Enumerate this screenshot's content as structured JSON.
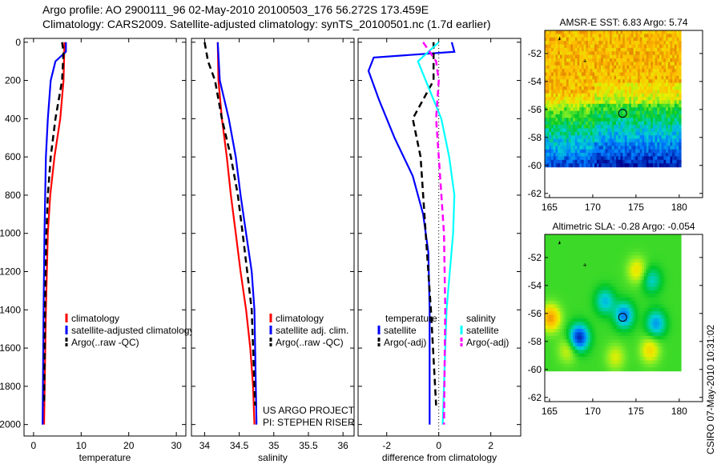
{
  "header": {
    "line1": "Argo profile: AO 2900111_96 02-May-2010 20100503_176 56.272S 173.459E",
    "line2": "Climatology: CARS2009. Satellite-adjusted climatology: synTS_20100501.nc (1.7d earlier)"
  },
  "side_stamp": "CSIRO 07-May-2010 10:31:02",
  "colors": {
    "red": "#ff0000",
    "blue": "#0000ff",
    "black": "#000000",
    "cyan": "#00ffff",
    "magenta": "#ff00ff"
  },
  "chart_data": [
    {
      "type": "line",
      "id": "temperature",
      "xlabel": "temperature",
      "xlim": [
        -2,
        32
      ],
      "ylim": [
        2060,
        -20
      ],
      "xticks": [
        0,
        10,
        20,
        30
      ],
      "yticks": [
        0,
        200,
        400,
        600,
        800,
        1000,
        1200,
        1400,
        1600,
        1800,
        2000
      ],
      "legend": [
        "climatology",
        "satellite-adjusted climatology",
        "Argo(..raw -QC)"
      ],
      "series": [
        {
          "name": "climatology",
          "color": "red",
          "dash": false,
          "depth": [
            0,
            100,
            200,
            400,
            600,
            800,
            1000,
            1400,
            2000
          ],
          "x": [
            6.5,
            6.4,
            6.3,
            5.6,
            4.4,
            3.5,
            3.0,
            2.6,
            2.2
          ]
        },
        {
          "name": "satellite-adjusted climatology",
          "color": "blue",
          "dash": false,
          "depth": [
            0,
            50,
            100,
            200,
            400,
            600,
            1000,
            1400,
            2000
          ],
          "x": [
            6.8,
            6.8,
            4.6,
            3.6,
            3.0,
            2.6,
            2.3,
            2.1,
            1.9
          ]
        },
        {
          "name": "Argo(..raw -QC)",
          "color": "black",
          "dash": true,
          "depth": [
            0,
            50,
            200,
            400,
            600,
            800,
            1000,
            1400,
            1900
          ],
          "x": [
            6.0,
            6.3,
            6.0,
            4.6,
            3.6,
            3.0,
            2.7,
            2.4,
            2.2
          ]
        }
      ]
    },
    {
      "type": "line",
      "id": "salinity",
      "xlabel": "salinity",
      "xlim": [
        33.81,
        36.16
      ],
      "ylim": [
        2060,
        -20
      ],
      "xticks": [
        34,
        34.5,
        35,
        35.5,
        36
      ],
      "legend": [
        "climatology",
        "satellite adj. clim.",
        "Argo(..raw -QC)"
      ],
      "annotation": [
        "US ARGO PROJECT",
        "PI: STEPHEN RISER"
      ],
      "series": [
        {
          "name": "climatology",
          "color": "red",
          "dash": false,
          "depth": [
            0,
            200,
            400,
            600,
            800,
            1000,
            1200,
            1400,
            1600,
            1800,
            2000
          ],
          "x": [
            34.19,
            34.2,
            34.25,
            34.32,
            34.38,
            34.45,
            34.52,
            34.6,
            34.66,
            34.7,
            34.72
          ]
        },
        {
          "name": "satellite adj. clim.",
          "color": "blue",
          "dash": false,
          "depth": [
            0,
            200,
            400,
            600,
            800,
            1000,
            1200,
            1400,
            2000
          ],
          "x": [
            34.19,
            34.22,
            34.35,
            34.45,
            34.52,
            34.6,
            34.68,
            34.72,
            34.75
          ]
        },
        {
          "name": "Argo(..raw -QC)",
          "color": "black",
          "dash": true,
          "depth": [
            0,
            100,
            200,
            400,
            600,
            800,
            1000,
            1400,
            1900
          ],
          "x": [
            34.0,
            34.05,
            34.15,
            34.25,
            34.38,
            34.48,
            34.55,
            34.68,
            34.73
          ]
        }
      ]
    },
    {
      "type": "line",
      "id": "difference",
      "xlabel": "difference from climatology",
      "xlim": [
        -3.1,
        3.15
      ],
      "ylim": [
        2060,
        -20
      ],
      "xticks": [
        -2,
        0,
        2
      ],
      "legend_groups": [
        {
          "title": "temperature",
          "items": [
            "satellite",
            "Argo(-adj)"
          ]
        },
        {
          "title": "salinity",
          "items": [
            "satellite",
            "Argo(-adj)"
          ]
        }
      ],
      "series": [
        {
          "name": "temperature satellite",
          "color": "blue",
          "dash": false,
          "depth": [
            0,
            50,
            80,
            150,
            300,
            500,
            700,
            900,
            1100,
            1400,
            2000
          ],
          "x": [
            0.5,
            0.6,
            -2.5,
            -2.7,
            -2.3,
            -1.7,
            -1.0,
            -0.6,
            -0.4,
            -0.35,
            -0.35
          ]
        },
        {
          "name": "temperature Argo(-adj)",
          "color": "black",
          "dash": true,
          "depth": [
            0,
            200,
            300,
            400,
            600,
            800,
            1000,
            1400,
            1900
          ],
          "x": [
            -0.2,
            -0.2,
            -0.6,
            -1.0,
            -0.7,
            -0.6,
            -0.5,
            -0.3,
            -0.1
          ]
        },
        {
          "name": "salinity satellite",
          "color": "cyan",
          "dash": false,
          "depth": [
            0,
            100,
            200,
            400,
            600,
            800,
            1000,
            1400,
            2000
          ],
          "x": [
            0,
            -0.8,
            -0.5,
            0.1,
            0.4,
            0.6,
            0.55,
            0.3,
            0.15
          ]
        },
        {
          "name": "salinity Argo(-adj)",
          "color": "magenta",
          "dash": true,
          "depth": [
            0,
            100,
            200,
            400,
            600,
            1000,
            1400,
            2000
          ],
          "x": [
            -0.6,
            -0.1,
            0.0,
            -0.1,
            0.0,
            0.2,
            0.25,
            0.2
          ]
        }
      ]
    },
    {
      "type": "heatmap",
      "id": "sst",
      "title": "AMSR-E SST: 6.83 Argo: 5.74",
      "xlim": [
        164.45,
        182.7
      ],
      "ylim": [
        -50.35,
        -62.3
      ],
      "xticks": [
        165,
        170,
        175,
        180
      ],
      "yticks": [
        -52,
        -54,
        -56,
        -58,
        -60,
        -62
      ],
      "argo_position": [
        173.459,
        -56.272
      ]
    },
    {
      "type": "heatmap",
      "id": "sla",
      "title": "Altimetric SLA: -0.28 Argo: -0.054",
      "xlim": [
        164.45,
        182.7
      ],
      "ylim": [
        -50.35,
        -62.3
      ],
      "xticks": [
        165,
        170,
        175,
        180
      ],
      "yticks": [
        -52,
        -54,
        -56,
        -58,
        -60,
        -62
      ],
      "argo_position": [
        173.459,
        -56.272
      ]
    }
  ]
}
